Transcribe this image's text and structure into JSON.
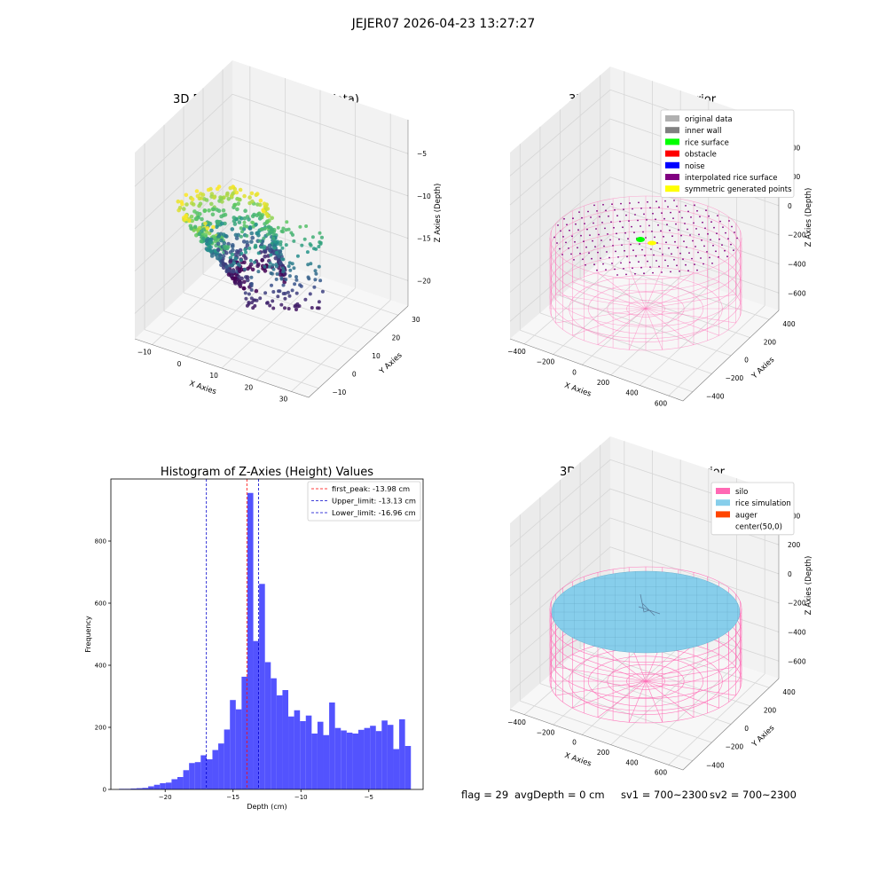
{
  "figure": {
    "suptitle": "JEJER07 2026-04-23 13:27:27",
    "status_line": {
      "flag": "flag = 29",
      "avg_depth": "avgDepth = 0 cm",
      "sv1": "sv1 = 700~2300",
      "sv2": "sv2 = 700~2300"
    }
  },
  "colors": {
    "histogram_bar": "#4a4afe",
    "first_peak_line": "#ff0000",
    "limit_line": "#0000cc",
    "silo_wire": "#ff69b4",
    "rice_simulation": "#87ceeb",
    "auger": "#ff4500",
    "pane_light": "#f2f2f2",
    "pane_mid": "#ebebeb",
    "grid": "#d6d6d6"
  },
  "chart_data": [
    {
      "id": "raw",
      "type": "scatter",
      "title": "3D Plot of Silo Interior(row data)",
      "xlabel": "X Axies",
      "ylabel": "Y Axies",
      "zlabel": "Z Axies (Depth)",
      "x_ticks": [
        "−10",
        "0",
        "10",
        "20",
        "30"
      ],
      "y_ticks": [
        "−10",
        "0",
        "10",
        "20",
        "30"
      ],
      "z_ticks": [
        "−20",
        "−15",
        "−10",
        "−5"
      ],
      "colormap": "viridis"
    },
    {
      "id": "classify",
      "type": "scatter",
      "title": "3D classify of Silo Interior",
      "xlabel": "X Axies",
      "ylabel": "Y Axies",
      "zlabel": "Z Axies (Depth)",
      "x_ticks": [
        "−400",
        "−200",
        "0",
        "200",
        "400",
        "600"
      ],
      "y_ticks": [
        "−400",
        "−200",
        "0",
        "200",
        "400"
      ],
      "z_ticks": [
        "−600",
        "−400",
        "−200",
        "0",
        "200",
        "400"
      ],
      "legend": [
        {
          "label": "original data",
          "color": "#b0b0b0"
        },
        {
          "label": "inner wall",
          "color": "#808080"
        },
        {
          "label": "rice surface",
          "color": "#00ff00"
        },
        {
          "label": "obstacle",
          "color": "#ff0000"
        },
        {
          "label": "noise",
          "color": "#0000ff"
        },
        {
          "label": "interpolated rice surface",
          "color": "#800080"
        },
        {
          "label": "symmetric generated points",
          "color": "#ffff00"
        }
      ]
    },
    {
      "id": "histogram",
      "type": "bar",
      "title": "Histogram of Z-Axies (Height) Values",
      "xlabel": "Depth (cm)",
      "ylabel": "Frequency",
      "xlim": [
        -24,
        -1
      ],
      "ylim": [
        0,
        1000
      ],
      "x_ticks": [
        -20,
        -15,
        -10,
        -5
      ],
      "x_tick_labels": [
        "−20",
        "−15",
        "−10",
        "−5"
      ],
      "y_ticks": [
        0,
        200,
        400,
        600,
        800
      ],
      "bin_start": -23.4,
      "bin_width": 0.43,
      "values": [
        2,
        2,
        3,
        4,
        5,
        10,
        15,
        20,
        22,
        33,
        40,
        62,
        85,
        88,
        110,
        97,
        127,
        148,
        193,
        288,
        258,
        363,
        955,
        478,
        662,
        410,
        358,
        303,
        320,
        235,
        255,
        220,
        238,
        180,
        218,
        175,
        280,
        198,
        190,
        183,
        180,
        192,
        198,
        205,
        188,
        222,
        208,
        130,
        226,
        140
      ],
      "vlines": [
        {
          "x": -13.98,
          "label": "first_peak: -13.98 cm",
          "color": "#ff0000"
        },
        {
          "x": -13.13,
          "label": "Upper_limit: -13.13 cm",
          "color": "#0000cc"
        },
        {
          "x": -16.96,
          "label": "Lower_limit: -16.96 cm",
          "color": "#0000cc"
        }
      ]
    },
    {
      "id": "simulation",
      "type": "scatter",
      "title": "3D simulation of Silo Interior",
      "xlabel": "X Axies",
      "ylabel": "Y Axies",
      "zlabel": "Z Axies (Depth)",
      "x_ticks": [
        "−400",
        "−200",
        "0",
        "200",
        "400",
        "600"
      ],
      "y_ticks": [
        "−400",
        "−200",
        "0",
        "200",
        "400"
      ],
      "z_ticks": [
        "−600",
        "−400",
        "−200",
        "0",
        "200",
        "400"
      ],
      "legend": [
        {
          "label": "silo",
          "color": "#ff69b4"
        },
        {
          "label": "rice simulation",
          "color": "#87ceeb"
        },
        {
          "label": "auger",
          "color": "#ff4500"
        },
        {
          "label": "center(50,0)",
          "color": ""
        }
      ]
    }
  ]
}
